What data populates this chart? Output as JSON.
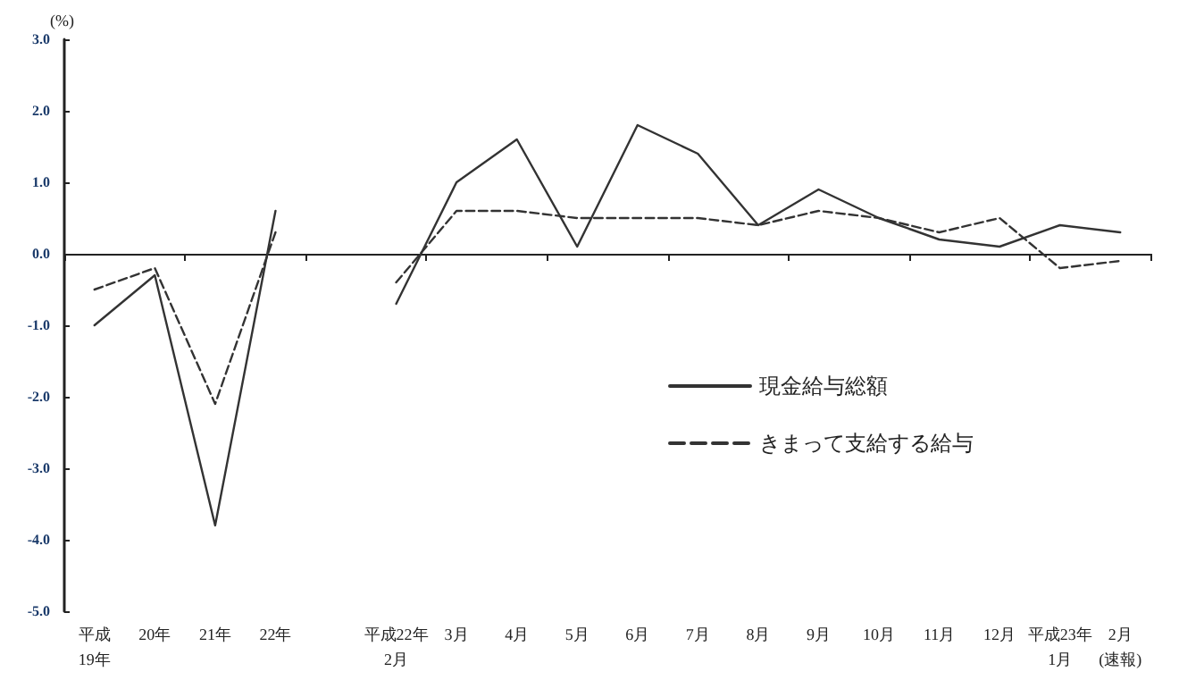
{
  "chart_data": {
    "type": "line",
    "ylabel": "(%)",
    "categories": [
      "平成\n19年",
      "20年",
      "21年",
      "22年",
      null,
      "平成22年\n2月",
      "3月",
      "4月",
      "5月",
      "6月",
      "7月",
      "8月",
      "9月",
      "10月",
      "11月",
      "12月",
      "平成23年\n1月",
      "2月\n(速報)"
    ],
    "series": [
      {
        "name": "現金給与総額",
        "color": "#333333",
        "line_style": "solid",
        "values": [
          -1.0,
          -0.3,
          -3.8,
          0.6,
          null,
          -0.7,
          1.0,
          1.6,
          0.1,
          1.8,
          1.4,
          0.4,
          0.9,
          0.5,
          0.2,
          0.1,
          0.4,
          0.3
        ]
      },
      {
        "name": "きまって支給する給与",
        "color": "#333333",
        "line_style": "dashed",
        "values": [
          -0.5,
          -0.2,
          -2.1,
          0.3,
          null,
          -0.4,
          0.6,
          0.6,
          0.5,
          0.5,
          0.5,
          0.4,
          0.6,
          0.5,
          0.3,
          0.5,
          -0.2,
          -0.1
        ]
      }
    ],
    "ylim": [
      -5,
      3
    ],
    "yticks": [
      {
        "value": -5,
        "label": "-5.0"
      },
      {
        "value": -4,
        "label": "-4.0"
      },
      {
        "value": -3,
        "label": "-3.0"
      },
      {
        "value": -2,
        "label": "-2.0"
      },
      {
        "value": -1,
        "label": "-1.0"
      },
      {
        "value": 0,
        "label": "0.0"
      },
      {
        "value": 1,
        "label": "1.0"
      },
      {
        "value": 2,
        "label": "2.0"
      },
      {
        "value": 3,
        "label": "3.0"
      }
    ],
    "legend": "right",
    "marker": "none"
  }
}
